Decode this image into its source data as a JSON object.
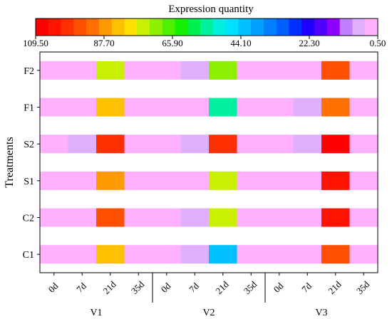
{
  "chart_data": {
    "type": "heatmap",
    "colorbar": {
      "title": "Expression quantity",
      "min": 0.5,
      "max": 109.5,
      "tick_labels": [
        "109.50",
        "87.70",
        "65.90",
        "44.10",
        "22.30",
        "0.50"
      ],
      "colors": [
        "#ff0000",
        "#ff1400",
        "#ff3000",
        "#ff5000",
        "#ff7000",
        "#ff9a00",
        "#ffc000",
        "#ffe000",
        "#c8f000",
        "#8cf000",
        "#50f000",
        "#14f000",
        "#00f050",
        "#00f0a0",
        "#00f0e0",
        "#00e0ff",
        "#00c0ff",
        "#00a0ff",
        "#0080ff",
        "#0060ff",
        "#0030ff",
        "#2000ff",
        "#5000ff",
        "#9000ff",
        "#c080ff",
        "#e0b0ff",
        "#ffb0ff"
      ]
    },
    "y_title": "Treatments",
    "rows": [
      "F2",
      "F1",
      "S2",
      "S1",
      "C2",
      "C1"
    ],
    "time_labels": [
      "0d",
      "7d",
      "21d",
      "35d"
    ],
    "groups": [
      "V1",
      "V2",
      "V3"
    ],
    "values": [
      [
        0.5,
        0.5,
        75,
        0.5,
        0.5,
        5,
        70,
        0.5,
        0.5,
        0.5,
        95,
        0.5
      ],
      [
        0.5,
        0.5,
        85,
        0.5,
        0.5,
        0.5,
        55,
        0.5,
        0.5,
        5,
        92,
        0.5
      ],
      [
        0.5,
        5,
        100,
        0.5,
        0.5,
        5,
        102,
        0.5,
        0.5,
        5,
        109.5,
        0.5
      ],
      [
        0.5,
        0.5,
        90,
        0.5,
        0.5,
        0.5,
        74,
        0.5,
        0.5,
        0.5,
        104,
        0.5
      ],
      [
        0.5,
        0.5,
        96,
        0.5,
        0.5,
        5,
        74,
        0.5,
        0.5,
        0.5,
        107,
        0.5
      ],
      [
        0.5,
        0.5,
        85,
        0.5,
        0.5,
        5,
        42,
        0.5,
        0.5,
        0.5,
        97,
        0.5
      ]
    ]
  }
}
